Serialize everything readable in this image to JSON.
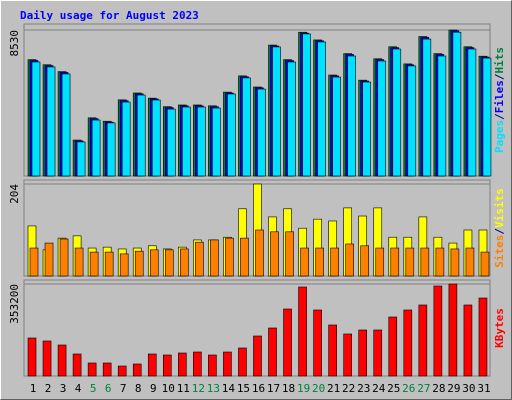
{
  "chart_data": [
    {
      "type": "bar",
      "title": "Daily usage for August 2023",
      "legend_separator": "/",
      "ylim": [
        0,
        8530
      ],
      "yticks": [
        8530
      ],
      "series": [
        {
          "name": "Hits",
          "color": "#008040",
          "values": [
            6800,
            6500,
            6100,
            2100,
            3400,
            3200,
            4450,
            4850,
            4550,
            4050,
            4150,
            4150,
            4100,
            4900,
            5850,
            5200,
            7650,
            6800,
            8400,
            7950,
            5900,
            7150,
            5600,
            6850,
            7550,
            6550,
            8150,
            7150,
            8530,
            7550,
            7000
          ]
        },
        {
          "name": "Files",
          "color": "#0000ff",
          "values": [
            6750,
            6450,
            6050,
            2050,
            3350,
            3150,
            4400,
            4800,
            4500,
            4000,
            4100,
            4100,
            4050,
            4850,
            5800,
            5150,
            7600,
            6750,
            8350,
            7900,
            5850,
            7100,
            5550,
            6800,
            7500,
            6500,
            8100,
            7100,
            8480,
            7500,
            6950
          ]
        },
        {
          "name": "Pages",
          "color": "#00e0ff",
          "values": [
            6660,
            6370,
            5960,
            1990,
            3270,
            3100,
            4320,
            4730,
            4440,
            3910,
            4030,
            4030,
            3970,
            4790,
            5730,
            5080,
            7540,
            6660,
            8300,
            7830,
            5780,
            7010,
            5490,
            6720,
            7420,
            6430,
            8000,
            7010,
            8400,
            7420,
            6890
          ]
        }
      ]
    },
    {
      "type": "bar",
      "ylim": [
        0,
        204
      ],
      "yticks": [
        204
      ],
      "legend_separator": "/",
      "series": [
        {
          "name": "Visits",
          "color": "#ffff00",
          "values": [
            111,
            58,
            84,
            89,
            62,
            64,
            60,
            62,
            67,
            60,
            64,
            80,
            80,
            86,
            149,
            204,
            131,
            149,
            106,
            126,
            122,
            151,
            133,
            151,
            86,
            86,
            131,
            86,
            73,
            102,
            102
          ]
        },
        {
          "name": "Sites",
          "color": "#ff8000",
          "values": [
            62,
            73,
            82,
            62,
            53,
            53,
            49,
            55,
            58,
            58,
            60,
            75,
            80,
            84,
            84,
            102,
            98,
            98,
            62,
            62,
            62,
            71,
            67,
            62,
            62,
            62,
            62,
            62,
            60,
            62,
            53
          ]
        }
      ]
    },
    {
      "type": "bar",
      "ylim": [
        0,
        353200
      ],
      "yticks": [
        353200
      ],
      "categories": [
        "1",
        "2",
        "3",
        "4",
        "5",
        "6",
        "7",
        "8",
        "9",
        "10",
        "11",
        "12",
        "13",
        "14",
        "15",
        "16",
        "17",
        "18",
        "19",
        "20",
        "21",
        "22",
        "23",
        "24",
        "25",
        "26",
        "27",
        "28",
        "29",
        "30",
        "31"
      ],
      "category_label_colors": [
        "#000000",
        "#000000",
        "#000000",
        "#000000",
        "#008040",
        "#008040",
        "#000000",
        "#000000",
        "#000000",
        "#000000",
        "#000000",
        "#008040",
        "#008040",
        "#000000",
        "#000000",
        "#000000",
        "#000000",
        "#000000",
        "#008040",
        "#008040",
        "#000000",
        "#000000",
        "#000000",
        "#000000",
        "#000000",
        "#008040",
        "#008040",
        "#000000",
        "#000000",
        "#000000",
        "#000000"
      ],
      "series": [
        {
          "name": "KBytes",
          "color": "#ff0000",
          "values": [
            145900,
            134400,
            119000,
            84500,
            49900,
            49900,
            38400,
            46100,
            84500,
            80600,
            88300,
            92100,
            80600,
            92100,
            107500,
            153600,
            184300,
            257200,
            341700,
            253400,
            195800,
            161200,
            176600,
            176600,
            226500,
            253400,
            272600,
            345500,
            353200,
            272600,
            299400
          ]
        }
      ]
    }
  ]
}
